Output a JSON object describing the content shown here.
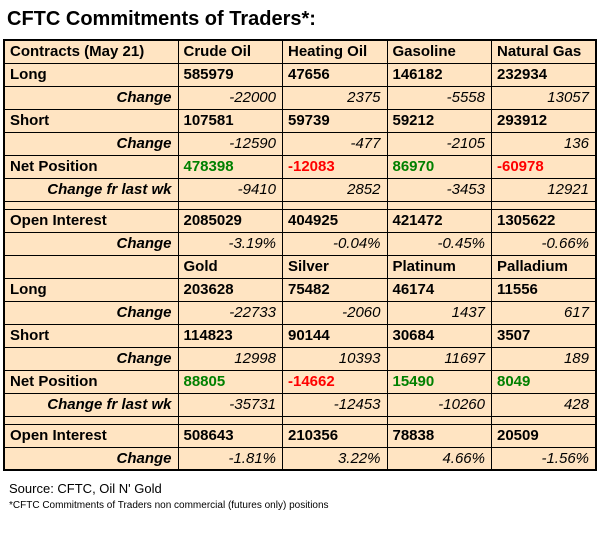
{
  "title": "CFTC Commitments of Traders*:",
  "footer": {
    "source": "Source: CFTC, Oil N' Gold",
    "footnote": "*CFTC Commitments of Traders non commercial (futures only) positions"
  },
  "colors": {
    "table_bg": "#ffe4c2",
    "border": "#000000",
    "positive": "#008000",
    "negative": "#ff0000"
  },
  "chart_data": {
    "type": "table",
    "title": "CFTC Commitments of Traders*:",
    "sections": [
      {
        "columns": [
          "Contracts (May 21)",
          "Crude Oil",
          "Heating Oil",
          "Gasoline",
          "Natural Gas"
        ],
        "rows": [
          {
            "label": "Long",
            "style": "value",
            "values": [
              "585979",
              "47656",
              "146182",
              "232934"
            ]
          },
          {
            "label": "Change",
            "style": "change",
            "values": [
              "-22000",
              "2375",
              "-5558",
              "13057"
            ]
          },
          {
            "label": "Short",
            "style": "value",
            "values": [
              "107581",
              "59739",
              "59212",
              "293912"
            ]
          },
          {
            "label": "Change",
            "style": "change",
            "values": [
              "-12590",
              "-477",
              "-2105",
              "136"
            ]
          },
          {
            "label": "Net Position",
            "style": "net",
            "values": [
              "478398",
              "-12083",
              "86970",
              "-60978"
            ]
          },
          {
            "label": "Change fr last wk",
            "style": "change",
            "values": [
              "-9410",
              "2852",
              "-3453",
              "12921"
            ]
          },
          {
            "label": "",
            "style": "spacer",
            "values": [
              "",
              "",
              "",
              ""
            ]
          },
          {
            "label": "Open Interest",
            "style": "value",
            "values": [
              "2085029",
              "404925",
              "421472",
              "1305622"
            ]
          },
          {
            "label": "Change",
            "style": "change",
            "values": [
              "-3.19%",
              "-0.04%",
              "-0.45%",
              "-0.66%"
            ]
          }
        ]
      },
      {
        "columns": [
          "",
          "Gold",
          "Silver",
          "Platinum",
          "Palladium"
        ],
        "rows": [
          {
            "label": "Long",
            "style": "value",
            "values": [
              "203628",
              "75482",
              "46174",
              "11556"
            ]
          },
          {
            "label": "Change",
            "style": "change",
            "values": [
              "-22733",
              "-2060",
              "1437",
              "617"
            ]
          },
          {
            "label": "Short",
            "style": "value",
            "values": [
              "114823",
              "90144",
              "30684",
              "3507"
            ]
          },
          {
            "label": "Change",
            "style": "change",
            "values": [
              "12998",
              "10393",
              "11697",
              "189"
            ]
          },
          {
            "label": "Net Position",
            "style": "net",
            "values": [
              "88805",
              "-14662",
              "15490",
              "8049"
            ]
          },
          {
            "label": "Change fr last wk",
            "style": "change",
            "values": [
              "-35731",
              "-12453",
              "-10260",
              "428"
            ]
          },
          {
            "label": "",
            "style": "spacer",
            "values": [
              "",
              "",
              "",
              ""
            ]
          },
          {
            "label": "Open Interest",
            "style": "value",
            "values": [
              "508643",
              "210356",
              "78838",
              "20509"
            ]
          },
          {
            "label": "Change",
            "style": "change",
            "values": [
              "-1.81%",
              "3.22%",
              "4.66%",
              "-1.56%"
            ]
          }
        ]
      }
    ]
  }
}
